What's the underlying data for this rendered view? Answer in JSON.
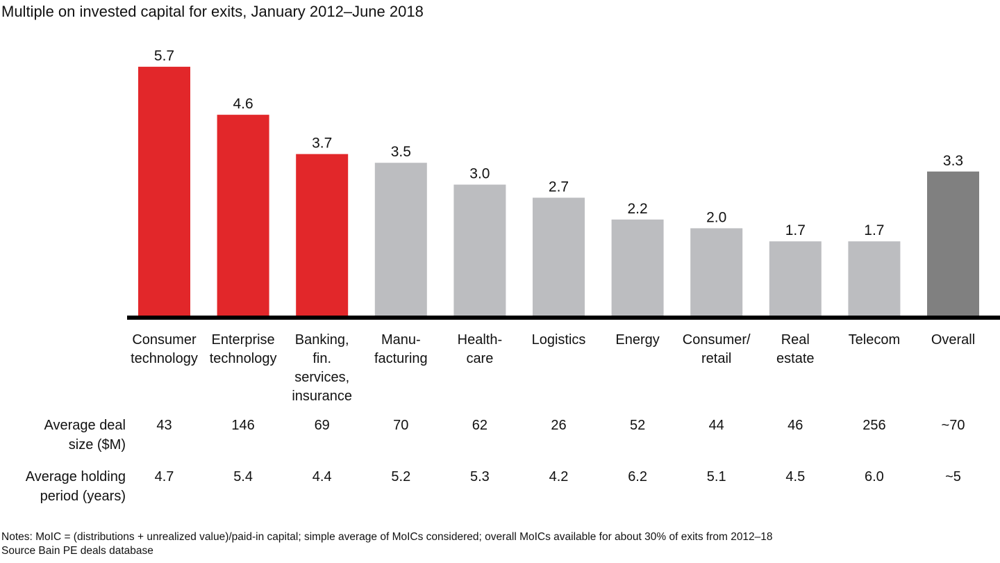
{
  "chart_data": {
    "type": "bar",
    "title": "Multiple on invested capital for exits, January 2012–June 2018",
    "xlabel": "",
    "ylabel": "",
    "ylim": [
      0,
      6
    ],
    "grid": false,
    "categories": [
      "Consumer\ntechnology",
      "Enterprise\ntechnology",
      "Banking,\nfin.\nservices,\ninsurance",
      "Manu-\nfacturing",
      "Health-\ncare",
      "Logistics",
      "Energy",
      "Consumer/\nretail",
      "Real\nestate",
      "Telecom",
      "Overall"
    ],
    "values": [
      5.7,
      4.6,
      3.7,
      3.5,
      3.0,
      2.7,
      2.2,
      2.0,
      1.7,
      1.7,
      3.3
    ],
    "value_labels": [
      "5.7",
      "4.6",
      "3.7",
      "3.5",
      "3.0",
      "2.7",
      "2.2",
      "2.0",
      "1.7",
      "1.7",
      "3.3"
    ],
    "bar_colors": [
      "#e2272a",
      "#e2272a",
      "#e2272a",
      "#bcbdc0",
      "#bcbdc0",
      "#bcbdc0",
      "#bcbdc0",
      "#bcbdc0",
      "#bcbdc0",
      "#bcbdc0",
      "#808080"
    ],
    "table_rows": [
      {
        "label": "Average deal\nsize ($M)",
        "values": [
          "43",
          "146",
          "69",
          "70",
          "62",
          "26",
          "52",
          "44",
          "46",
          "256",
          "~70"
        ]
      },
      {
        "label": "Average holding\nperiod (years)",
        "values": [
          "4.7",
          "5.4",
          "4.4",
          "5.2",
          "5.3",
          "4.2",
          "6.2",
          "5.1",
          "4.5",
          "6.0",
          "~5"
        ]
      }
    ]
  },
  "colors": {
    "highlight": "#e2272a",
    "neutral": "#bcbdc0",
    "overall": "#808080",
    "axis": "#000000"
  },
  "notes": "Notes: MoIC = (distributions + unrealized value)/paid-in capital; simple average of MoICs considered; overall MoICs available for about 30% of exits from 2012–18",
  "source": "Source Bain PE deals database"
}
